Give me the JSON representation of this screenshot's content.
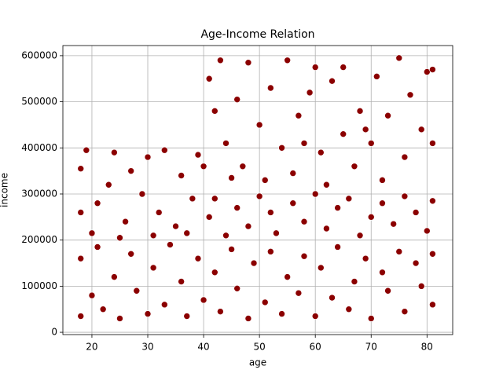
{
  "chart_data": {
    "type": "scatter",
    "title": "Age-Income Relation",
    "x_label": "age",
    "y_label": "income",
    "color": "#8b0000",
    "grid": true,
    "xlim": [
      14.8,
      84.6
    ],
    "ylim": [
      -5000,
      622000
    ],
    "xticks": [
      20,
      30,
      40,
      50,
      60,
      70,
      80
    ],
    "yticks": [
      0,
      100000,
      200000,
      300000,
      400000,
      500000,
      600000
    ],
    "x": [
      18,
      18,
      20,
      21,
      22,
      24,
      25,
      27,
      28,
      30,
      31,
      33,
      34,
      36,
      37,
      39,
      40,
      42,
      43,
      45,
      46,
      48,
      49,
      51,
      52,
      54,
      55,
      57,
      58,
      60,
      61,
      63,
      64,
      66,
      67,
      69,
      70,
      72,
      73,
      75,
      76,
      78,
      79,
      81,
      81,
      18,
      18,
      19,
      21,
      23,
      24,
      26,
      27,
      29,
      30,
      32,
      33,
      35,
      36,
      38,
      39,
      40,
      20,
      25,
      31,
      37,
      41,
      42,
      44,
      46,
      48,
      50,
      52,
      53,
      56,
      58,
      60,
      62,
      64,
      66,
      68,
      70,
      72,
      74,
      76,
      78,
      80,
      81,
      41,
      42,
      43,
      44,
      46,
      47,
      48,
      50,
      51,
      52,
      54,
      55,
      56,
      57,
      59,
      60,
      61,
      62,
      63,
      65,
      65,
      67,
      68,
      70,
      71,
      72,
      73,
      75,
      76,
      77,
      79,
      80,
      81,
      81,
      45,
      58,
      69
    ],
    "y": [
      35000,
      160000,
      80000,
      185000,
      50000,
      120000,
      30000,
      170000,
      90000,
      40000,
      140000,
      60000,
      190000,
      110000,
      35000,
      160000,
      70000,
      130000,
      45000,
      180000,
      95000,
      30000,
      150000,
      65000,
      175000,
      40000,
      120000,
      85000,
      165000,
      35000,
      140000,
      75000,
      185000,
      50000,
      110000,
      160000,
      30000,
      130000,
      90000,
      175000,
      45000,
      150000,
      100000,
      60000,
      170000,
      260000,
      355000,
      395000,
      280000,
      320000,
      390000,
      240000,
      350000,
      300000,
      380000,
      260000,
      395000,
      230000,
      340000,
      290000,
      385000,
      360000,
      215000,
      205000,
      210000,
      215000,
      250000,
      290000,
      210000,
      270000,
      230000,
      295000,
      260000,
      215000,
      280000,
      240000,
      300000,
      225000,
      270000,
      290000,
      210000,
      250000,
      280000,
      235000,
      295000,
      260000,
      220000,
      285000,
      550000,
      480000,
      590000,
      410000,
      505000,
      360000,
      585000,
      450000,
      330000,
      530000,
      400000,
      590000,
      345000,
      470000,
      520000,
      575000,
      390000,
      320000,
      545000,
      430000,
      575000,
      360000,
      480000,
      410000,
      555000,
      330000,
      470000,
      595000,
      380000,
      515000,
      440000,
      565000,
      410000,
      570000,
      335000,
      410000,
      440000
    ]
  }
}
